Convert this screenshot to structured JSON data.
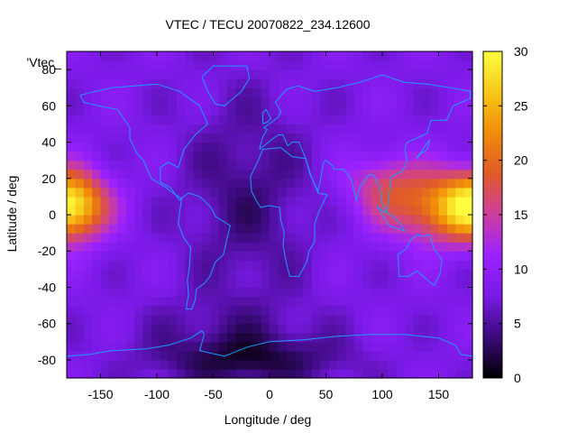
{
  "chart_data": {
    "type": "heatmap",
    "title": "VTEC / TECU 20070822_234.12600",
    "xlabel": "Longitude / deg",
    "ylabel": "Latitude / deg",
    "series_key": "'Vtec_",
    "xlim": [
      -180,
      180
    ],
    "ylim": [
      -90,
      90
    ],
    "x_ticks": [
      -150,
      -100,
      -50,
      0,
      50,
      100,
      150
    ],
    "y_ticks": [
      -80,
      -60,
      -40,
      -20,
      0,
      20,
      40,
      60,
      80
    ],
    "colorbar": {
      "range": [
        0,
        30
      ],
      "ticks": [
        0,
        5,
        10,
        15,
        20,
        25,
        30
      ],
      "palette": [
        "#000000",
        "#3a0a7a",
        "#7a1ae6",
        "#9a22ff",
        "#cc3e9e",
        "#e05a28",
        "#f08c0a",
        "#f7c818",
        "#ffff40"
      ]
    },
    "coastline_color": "#1e9bff",
    "grid": false,
    "features": {
      "background_tec": 8,
      "equatorial_anomaly_peaks": [
        {
          "lon": -160,
          "lat": 5,
          "tec": 24
        },
        {
          "lon": 160,
          "lat": 8,
          "tec": 25
        },
        {
          "lon": 130,
          "lat": 3,
          "tec": 24
        }
      ],
      "polar_minimum": {
        "lon": -20,
        "lat": -80,
        "tec": 1
      }
    }
  }
}
